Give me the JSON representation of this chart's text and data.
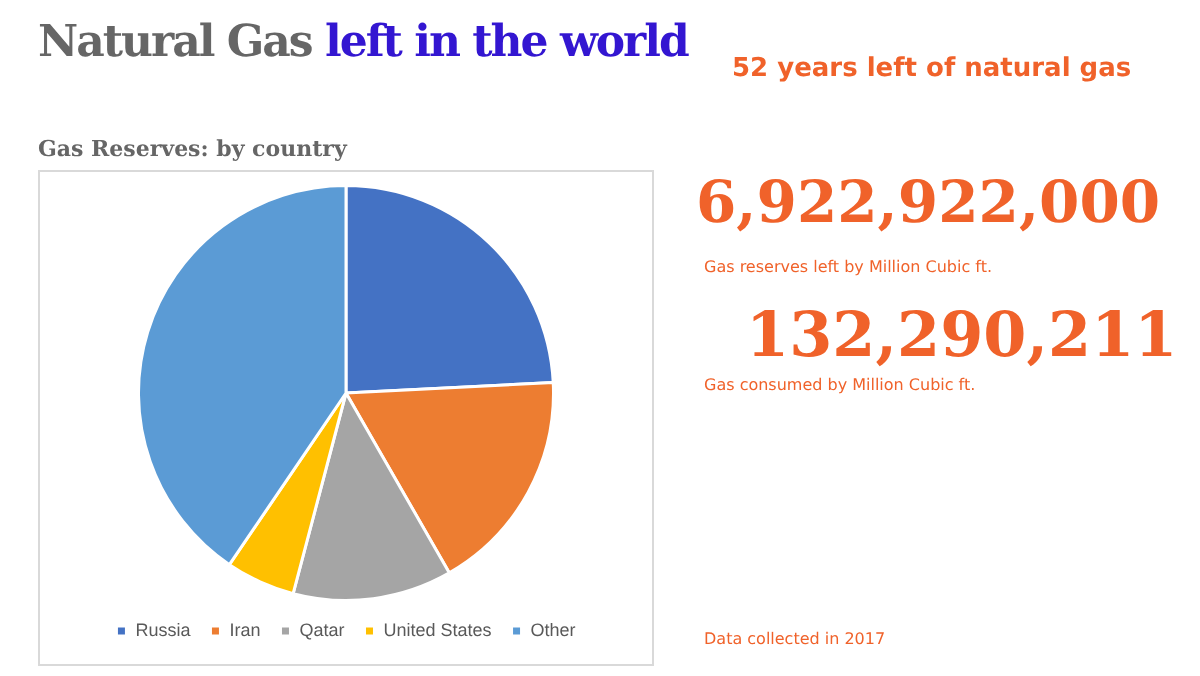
{
  "chart_data": {
    "type": "pie",
    "title": "Natural Gas left in the world",
    "subtitle": "Gas Reserves: by country",
    "categories": [
      "Russia",
      "Iran",
      "Qatar",
      "United States",
      "Other"
    ],
    "values": [
      24.2,
      17.5,
      12.4,
      5.4,
      40.5
    ],
    "colors": [
      "#4472c4",
      "#ed7d31",
      "#a5a5a5",
      "#ffc000",
      "#5b9bd5"
    ],
    "legend": "bottom",
    "annotations": [
      "52 years left of natural gas",
      "6,922,922,000",
      "Gas reserves left by Million Cubic ft.",
      "132,290,211",
      "Gas consumed by Million Cubic ft.",
      "Data collected in 2017"
    ]
  }
}
